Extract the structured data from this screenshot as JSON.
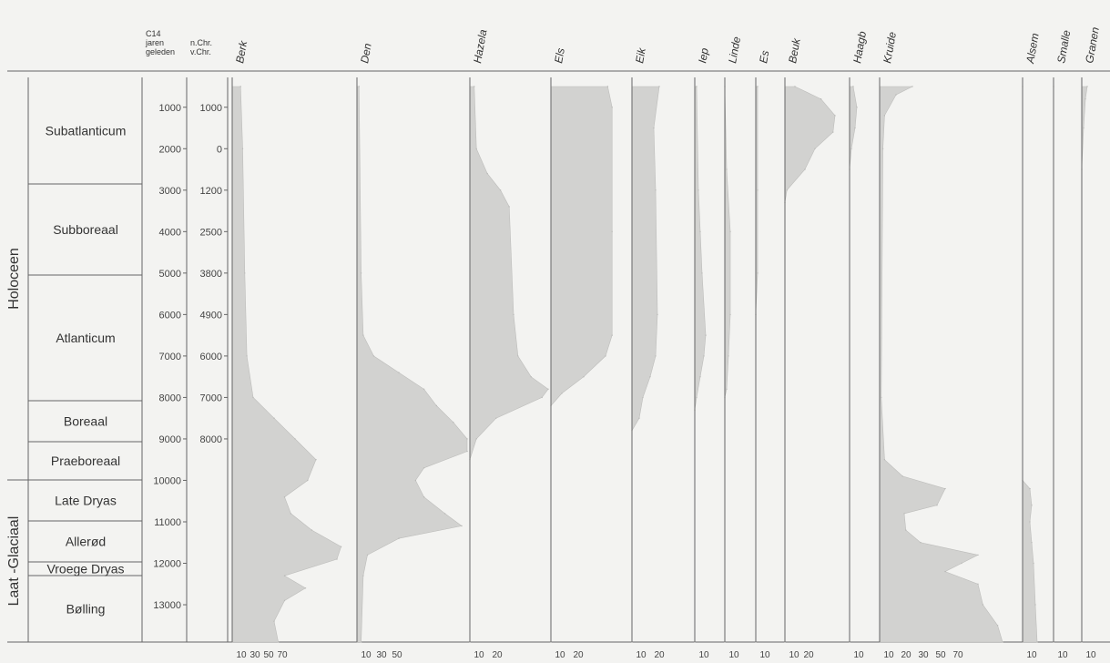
{
  "chart_data": {
    "type": "area",
    "header": {
      "c14_label": [
        "C14",
        "jaren",
        "geleden"
      ],
      "cal_label": [
        "n.Chr.",
        "v.Chr."
      ]
    },
    "epochs": [
      "Holoceen",
      "Laat -Glaciaal"
    ],
    "zones": [
      "Subatlanticum",
      "Subboreaal",
      "Atlanticum",
      "Boreaal",
      "Praeboreaal",
      "Late Dryas",
      "Allerød",
      "Vroege Dryas",
      "Bølling"
    ],
    "c14_ticks": [
      "1000",
      "2000",
      "3000",
      "4000",
      "5000",
      "6000",
      "7000",
      "8000",
      "9000",
      "10000",
      "11000",
      "12000",
      "13000"
    ],
    "cal_ticks": [
      "1000",
      "0",
      "1200",
      "2500",
      "3800",
      "4900",
      "6000",
      "7000",
      "8000"
    ],
    "c14_range": [
      500,
      13900
    ],
    "series": [
      {
        "name": "Berk",
        "scale_labels": [
          "10",
          "30",
          "50",
          "70"
        ],
        "values": [
          [
            500,
            4
          ],
          [
            2000,
            5
          ],
          [
            5000,
            6
          ],
          [
            7000,
            7
          ],
          [
            8000,
            10
          ],
          [
            8500,
            20
          ],
          [
            9000,
            30
          ],
          [
            9500,
            40
          ],
          [
            10000,
            36
          ],
          [
            10400,
            25
          ],
          [
            10800,
            28
          ],
          [
            11200,
            38
          ],
          [
            11600,
            52
          ],
          [
            11900,
            50
          ],
          [
            12300,
            25
          ],
          [
            12600,
            35
          ],
          [
            12900,
            25
          ],
          [
            13400,
            20
          ],
          [
            13900,
            22
          ]
        ]
      },
      {
        "name": "Den",
        "scale_labels": [
          "10",
          "30",
          "50"
        ],
        "values": [
          [
            500,
            1
          ],
          [
            5000,
            2
          ],
          [
            6500,
            3
          ],
          [
            7000,
            8
          ],
          [
            7400,
            20
          ],
          [
            7800,
            32
          ],
          [
            8200,
            38
          ],
          [
            8600,
            46
          ],
          [
            9000,
            56
          ],
          [
            9300,
            54
          ],
          [
            9700,
            32
          ],
          [
            10000,
            28
          ],
          [
            10400,
            32
          ],
          [
            10800,
            42
          ],
          [
            11100,
            50
          ],
          [
            11400,
            20
          ],
          [
            11800,
            5
          ],
          [
            12300,
            3
          ],
          [
            13900,
            2
          ]
        ]
      },
      {
        "name": "Hazela",
        "scale_labels": [
          "10",
          "20"
        ],
        "values": [
          [
            500,
            2
          ],
          [
            2000,
            3
          ],
          [
            2600,
            8
          ],
          [
            3000,
            14
          ],
          [
            3400,
            18
          ],
          [
            6000,
            20
          ],
          [
            7000,
            22
          ],
          [
            7500,
            28
          ],
          [
            7800,
            37
          ],
          [
            8000,
            33
          ],
          [
            8500,
            12
          ],
          [
            9000,
            3
          ],
          [
            9500,
            0
          ],
          [
            13900,
            0
          ]
        ]
      },
      {
        "name": "Els",
        "scale_labels": [
          "10",
          "20"
        ],
        "values": [
          [
            500,
            26
          ],
          [
            1000,
            28
          ],
          [
            4000,
            28
          ],
          [
            6500,
            28
          ],
          [
            7000,
            25
          ],
          [
            7500,
            15
          ],
          [
            7900,
            5
          ],
          [
            8200,
            0
          ],
          [
            13900,
            0
          ]
        ]
      },
      {
        "name": "Eik",
        "scale_labels": [
          "10",
          "20"
        ],
        "values": [
          [
            500,
            15
          ],
          [
            1500,
            12
          ],
          [
            3000,
            13
          ],
          [
            6000,
            14
          ],
          [
            7000,
            13
          ],
          [
            7500,
            10
          ],
          [
            8000,
            6
          ],
          [
            8500,
            4
          ],
          [
            8800,
            0
          ],
          [
            13900,
            0
          ]
        ]
      },
      {
        "name": "Iep",
        "scale_labels": [
          "10"
        ],
        "values": [
          [
            500,
            1
          ],
          [
            3000,
            2
          ],
          [
            4000,
            3
          ],
          [
            5000,
            4
          ],
          [
            6500,
            6
          ],
          [
            7000,
            5
          ],
          [
            7500,
            3
          ],
          [
            8000,
            1
          ],
          [
            8300,
            0
          ],
          [
            13900,
            0
          ]
        ]
      },
      {
        "name": "Linde",
        "scale_labels": [
          "10"
        ],
        "values": [
          [
            500,
            0
          ],
          [
            2500,
            1
          ],
          [
            4000,
            3
          ],
          [
            6000,
            3
          ],
          [
            7000,
            2
          ],
          [
            7800,
            1
          ],
          [
            8000,
            0
          ],
          [
            13900,
            0
          ]
        ]
      },
      {
        "name": "Es",
        "scale_labels": [
          "10"
        ],
        "values": [
          [
            500,
            1
          ],
          [
            3000,
            1
          ],
          [
            5000,
            1
          ],
          [
            6000,
            0
          ],
          [
            13900,
            0
          ]
        ]
      },
      {
        "name": "Beuk",
        "scale_labels": [
          "10",
          "20"
        ],
        "values": [
          [
            500,
            5
          ],
          [
            800,
            18
          ],
          [
            1200,
            25
          ],
          [
            1600,
            24
          ],
          [
            2000,
            15
          ],
          [
            2500,
            10
          ],
          [
            3000,
            1
          ],
          [
            3300,
            0
          ],
          [
            13900,
            0
          ]
        ]
      },
      {
        "name": "Haagb",
        "scale_labels": [
          "10"
        ],
        "values": [
          [
            500,
            2
          ],
          [
            1000,
            4
          ],
          [
            1500,
            3
          ],
          [
            2000,
            1
          ],
          [
            2500,
            0
          ],
          [
            13900,
            0
          ]
        ]
      },
      {
        "name": "Kruide",
        "scale_labels": [
          "10",
          "20",
          "30",
          "50",
          "70"
        ],
        "values": [
          [
            500,
            20
          ],
          [
            700,
            10
          ],
          [
            1200,
            3
          ],
          [
            2000,
            2
          ],
          [
            8000,
            1
          ],
          [
            9500,
            3
          ],
          [
            9900,
            14
          ],
          [
            10200,
            40
          ],
          [
            10600,
            35
          ],
          [
            10800,
            15
          ],
          [
            11200,
            16
          ],
          [
            11500,
            25
          ],
          [
            11800,
            60
          ],
          [
            12000,
            50
          ],
          [
            12200,
            40
          ],
          [
            12500,
            60
          ],
          [
            13000,
            63
          ],
          [
            13500,
            72
          ],
          [
            13900,
            75
          ]
        ]
      },
      {
        "name": "Alsem",
        "scale_labels": [
          "10"
        ],
        "values": [
          [
            500,
            0
          ],
          [
            10000,
            0
          ],
          [
            10200,
            4
          ],
          [
            10600,
            5
          ],
          [
            11000,
            4
          ],
          [
            11500,
            5
          ],
          [
            12000,
            6
          ],
          [
            13000,
            7
          ],
          [
            13900,
            8
          ]
        ]
      },
      {
        "name": "Smalle",
        "scale_labels": [
          "10"
        ],
        "values": [
          [
            500,
            0
          ],
          [
            13900,
            0
          ]
        ]
      },
      {
        "name": "Granen",
        "scale_labels": [
          "10"
        ],
        "values": [
          [
            500,
            3
          ],
          [
            800,
            2
          ],
          [
            1500,
            1
          ],
          [
            2500,
            0
          ],
          [
            13900,
            0
          ]
        ]
      }
    ],
    "colors": {
      "fill": "#d2d2d0",
      "axis": "#666666",
      "bg": "#f3f3f1",
      "text": "#333333"
    },
    "grid": false
  }
}
